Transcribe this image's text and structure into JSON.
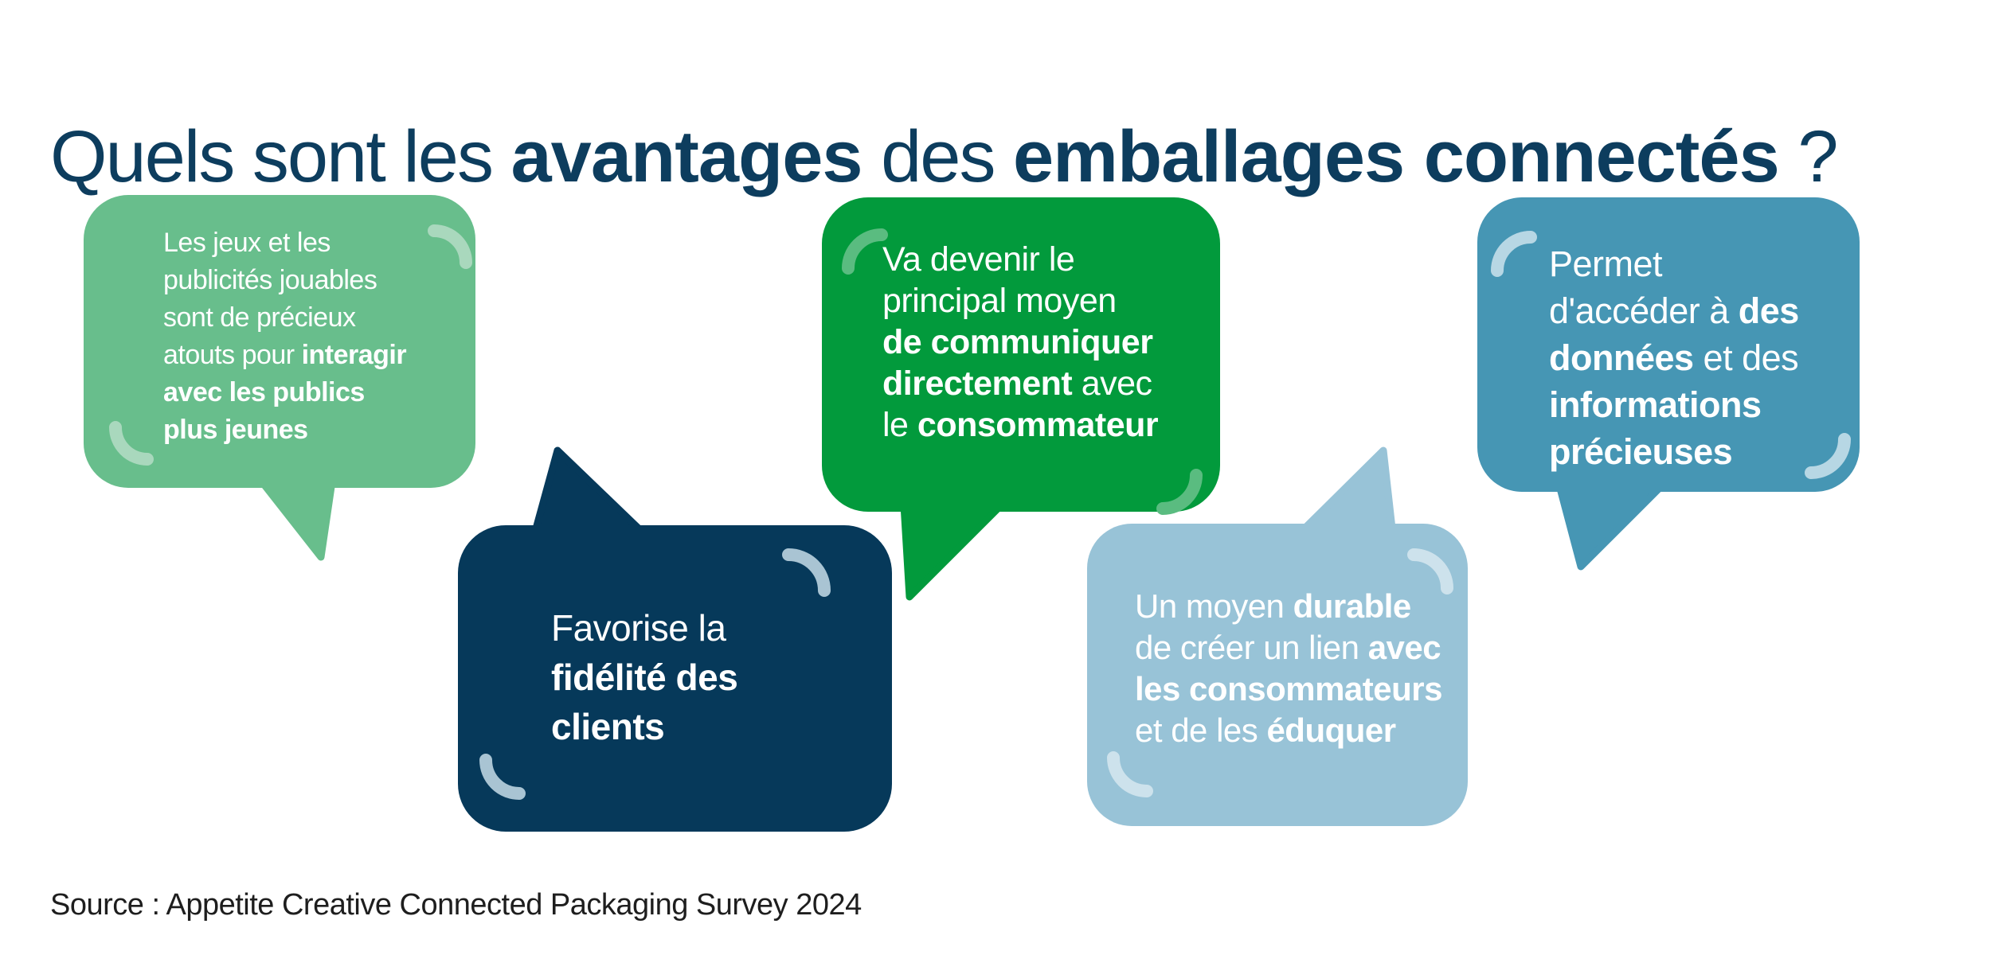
{
  "title": {
    "parts": [
      {
        "t": "Quels sont les ",
        "b": false
      },
      {
        "t": "avantages",
        "b": true
      },
      {
        "t": " des ",
        "b": false
      },
      {
        "t": "emballages connectés",
        "b": true
      },
      {
        "t": " ?",
        "b": false
      }
    ],
    "color": "#0d3d5e"
  },
  "source": {
    "text": "Source : Appetite Creative Connected Packaging Survey 2024",
    "color": "#1e1e1e"
  },
  "background": "#ffffff",
  "bubbles": [
    {
      "name": "interagir-publics-jeunes",
      "color": "#68be8c",
      "arc_color": "#a9d8bd",
      "text_color": "#ffffff",
      "lines": [
        [
          {
            "t": "Les jeux et les",
            "b": false
          }
        ],
        [
          {
            "t": "publicités jouables",
            "b": false
          }
        ],
        [
          {
            "t": "sont de précieux",
            "b": false
          }
        ],
        [
          {
            "t": "atouts pour ",
            "b": false
          },
          {
            "t": "interagir",
            "b": true
          }
        ],
        [
          {
            "t": "avec les publics",
            "b": true
          }
        ],
        [
          {
            "t": "plus jeunes",
            "b": true
          }
        ]
      ]
    },
    {
      "name": "fidelite-clients",
      "color": "#06395a",
      "arc_color": "#a9c4d3",
      "text_color": "#ffffff",
      "lines": [
        [
          {
            "t": "Favorise la",
            "b": false
          }
        ],
        [
          {
            "t": "fidélité des",
            "b": true
          }
        ],
        [
          {
            "t": "clients",
            "b": true
          }
        ]
      ]
    },
    {
      "name": "communiquer-directement",
      "color": "#029a3c",
      "arc_color": "#5abc80",
      "text_color": "#ffffff",
      "lines": [
        [
          {
            "t": "Va devenir le",
            "b": false
          }
        ],
        [
          {
            "t": "principal moyen",
            "b": false
          }
        ],
        [
          {
            "t": "de communiquer",
            "b": true
          }
        ],
        [
          {
            "t": "directement",
            "b": true
          },
          {
            "t": " avec",
            "b": false
          }
        ],
        [
          {
            "t": "le ",
            "b": false
          },
          {
            "t": "consommateur",
            "b": true
          }
        ]
      ]
    },
    {
      "name": "lien-durable-consommateurs",
      "color": "#98c3d7",
      "arc_color": "#cde2ec",
      "text_color": "#ffffff",
      "lines": [
        [
          {
            "t": "Un moyen ",
            "b": false
          },
          {
            "t": "durable",
            "b": true
          }
        ],
        [
          {
            "t": "de créer un lien ",
            "b": false
          },
          {
            "t": "avec",
            "b": true
          }
        ],
        [
          {
            "t": "les consommateurs",
            "b": true
          }
        ],
        [
          {
            "t": "et de les ",
            "b": false
          },
          {
            "t": "éduquer",
            "b": true
          }
        ]
      ]
    },
    {
      "name": "donnees-informations-precieuses",
      "color": "#4696b4",
      "arc_color": "#b7d7e4",
      "text_color": "#ffffff",
      "lines": [
        [
          {
            "t": "Permet",
            "b": false
          }
        ],
        [
          {
            "t": "d'accéder à ",
            "b": false
          },
          {
            "t": "des",
            "b": true
          }
        ],
        [
          {
            "t": "données",
            "b": true
          },
          {
            "t": " et des",
            "b": false
          }
        ],
        [
          {
            "t": "informations",
            "b": true
          }
        ],
        [
          {
            "t": "précieuses",
            "b": true
          }
        ]
      ]
    }
  ]
}
